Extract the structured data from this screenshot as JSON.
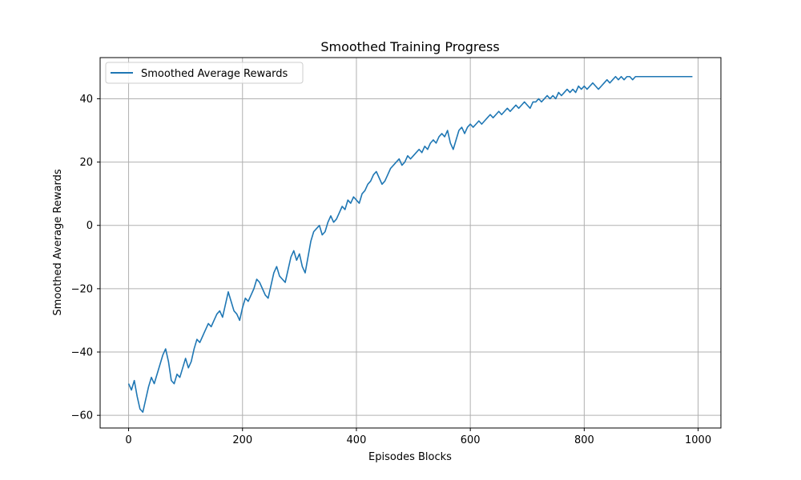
{
  "chart_data": {
    "type": "line",
    "title": "Smoothed Training Progress",
    "xlabel": "Episodes Blocks",
    "ylabel": "Smoothed Average Rewards",
    "xlim": [
      -50,
      1040
    ],
    "ylim": [
      -64,
      53
    ],
    "xticks": [
      0,
      200,
      400,
      600,
      800,
      1000
    ],
    "yticks": [
      -60,
      -40,
      -20,
      0,
      20,
      40
    ],
    "grid": true,
    "legend_position": "upper-left",
    "line_color": "#1f77b4",
    "series": [
      {
        "name": "Smoothed Average Rewards",
        "x": [
          0,
          5,
          10,
          15,
          20,
          25,
          30,
          35,
          40,
          45,
          50,
          55,
          60,
          65,
          70,
          75,
          80,
          85,
          90,
          95,
          100,
          105,
          110,
          115,
          120,
          125,
          130,
          135,
          140,
          145,
          150,
          155,
          160,
          165,
          170,
          175,
          180,
          185,
          190,
          195,
          200,
          205,
          210,
          215,
          220,
          225,
          230,
          235,
          240,
          245,
          250,
          255,
          260,
          265,
          270,
          275,
          280,
          285,
          290,
          295,
          300,
          305,
          310,
          315,
          320,
          325,
          330,
          335,
          340,
          345,
          350,
          355,
          360,
          365,
          370,
          375,
          380,
          385,
          390,
          395,
          400,
          405,
          410,
          415,
          420,
          425,
          430,
          435,
          440,
          445,
          450,
          455,
          460,
          465,
          470,
          475,
          480,
          485,
          490,
          495,
          500,
          505,
          510,
          515,
          520,
          525,
          530,
          535,
          540,
          545,
          550,
          555,
          560,
          565,
          570,
          575,
          580,
          585,
          590,
          595,
          600,
          605,
          610,
          615,
          620,
          625,
          630,
          635,
          640,
          645,
          650,
          655,
          660,
          665,
          670,
          675,
          680,
          685,
          690,
          695,
          700,
          705,
          710,
          715,
          720,
          725,
          730,
          735,
          740,
          745,
          750,
          755,
          760,
          765,
          770,
          775,
          780,
          785,
          790,
          795,
          800,
          805,
          810,
          815,
          820,
          825,
          830,
          835,
          840,
          845,
          850,
          855,
          860,
          865,
          870,
          875,
          880,
          885,
          890,
          895,
          900,
          905,
          910,
          915,
          920,
          925,
          930,
          935,
          940,
          945,
          950,
          955,
          960,
          965,
          970,
          975,
          980,
          985,
          990
        ],
        "y": [
          -50,
          -52,
          -49,
          -54,
          -58,
          -59,
          -55,
          -51,
          -48,
          -50,
          -47,
          -44,
          -41,
          -39,
          -43,
          -49,
          -50,
          -47,
          -48,
          -45,
          -42,
          -45,
          -43,
          -39,
          -36,
          -37,
          -35,
          -33,
          -31,
          -32,
          -30,
          -28,
          -27,
          -29,
          -25,
          -21,
          -24,
          -27,
          -28,
          -30,
          -26,
          -23,
          -24,
          -22,
          -20,
          -17,
          -18,
          -20,
          -22,
          -23,
          -19,
          -15,
          -13,
          -16,
          -17,
          -18,
          -14,
          -10,
          -8,
          -11,
          -9,
          -13,
          -15,
          -10,
          -5,
          -2,
          -1,
          0,
          -3,
          -2,
          1,
          3,
          1,
          2,
          4,
          6,
          5,
          8,
          7,
          9,
          8,
          7,
          10,
          11,
          13,
          14,
          16,
          17,
          15,
          13,
          14,
          16,
          18,
          19,
          20,
          21,
          19,
          20,
          22,
          21,
          22,
          23,
          24,
          23,
          25,
          24,
          26,
          27,
          26,
          28,
          29,
          28,
          30,
          26,
          24,
          27,
          30,
          31,
          29,
          31,
          32,
          31,
          32,
          33,
          32,
          33,
          34,
          35,
          34,
          35,
          36,
          35,
          36,
          37,
          36,
          37,
          38,
          37,
          38,
          39,
          38,
          37,
          39,
          39,
          40,
          39,
          40,
          41,
          40,
          41,
          40,
          42,
          41,
          42,
          43,
          42,
          43,
          42,
          44,
          43,
          44,
          43,
          44,
          45,
          44,
          43,
          44,
          45,
          46,
          45,
          46,
          47,
          46,
          47,
          46,
          47,
          47,
          46,
          47,
          47,
          47,
          47,
          47,
          47,
          47,
          47,
          47,
          47,
          47,
          47,
          47,
          47,
          47,
          47,
          47,
          47,
          47,
          47,
          47
        ]
      }
    ]
  }
}
